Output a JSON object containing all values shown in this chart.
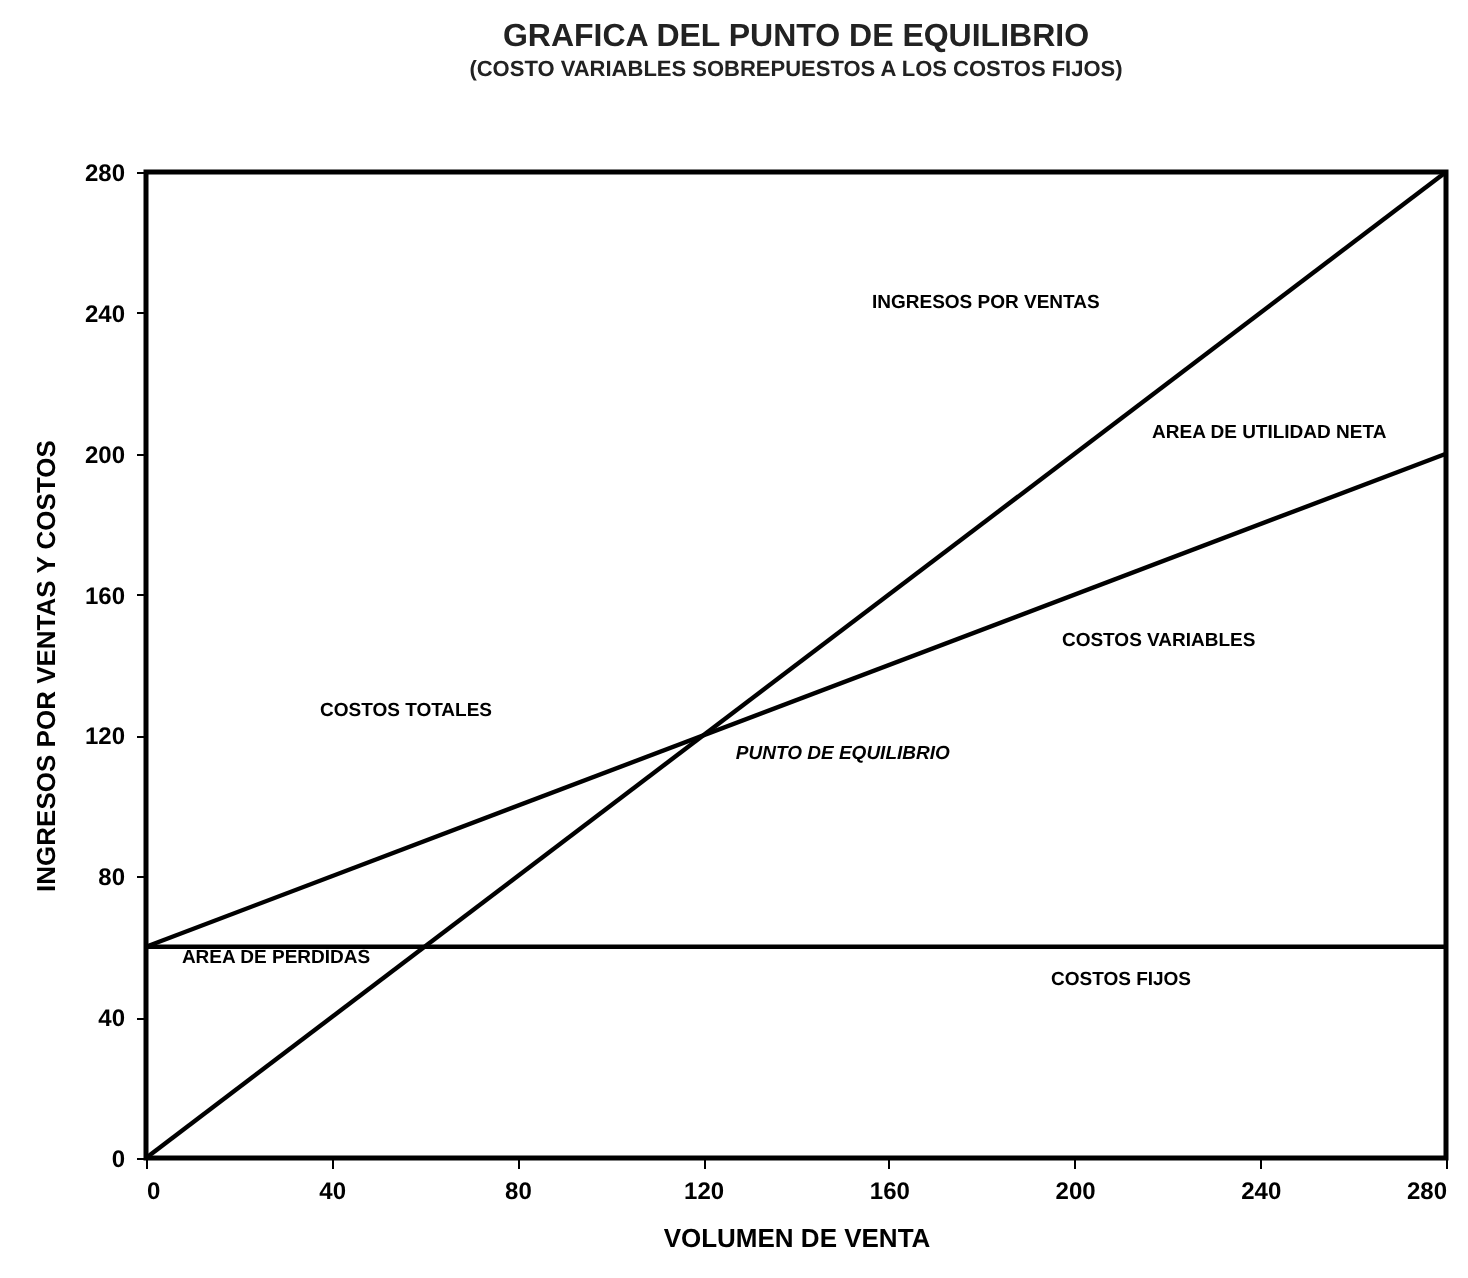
{
  "chart_data": {
    "type": "line",
    "title": "GRAFICA DEL PUNTO DE EQUILIBRIO",
    "subtitle": "(COSTO VARIABLES SOBREPUESTOS A LOS COSTOS FIJOS)",
    "xlabel": "VOLUMEN DE VENTA",
    "ylabel": "INGRESOS POR VENTAS Y COSTOS",
    "x": [
      0,
      280
    ],
    "series": [
      {
        "color": "#000000",
        "values": [
          0,
          280
        ]
      },
      {
        "color": "#000000",
        "values": [
          60,
          200
        ]
      },
      {
        "color": "#000000",
        "values": [
          60,
          60
        ]
      }
    ],
    "xlim": [
      0,
      280
    ],
    "xticks": [
      0,
      40,
      80,
      120,
      160,
      200,
      240,
      280
    ],
    "ylim": [
      0,
      280
    ],
    "yticks": [
      0,
      40,
      80,
      120,
      160,
      200,
      240,
      280
    ],
    "grid": false,
    "legend": false,
    "marker": "none",
    "line_style": "solid",
    "annotations": [
      "INGRESOS POR VENTAS",
      "AREA DE UTILIDAD NETA",
      "COSTOS VARIABLES",
      "COSTOS TOTALES",
      "PUNTO DE EQUILIBRIO",
      "AREA DE PERDIDAS",
      "COSTOS FIJOS"
    ]
  }
}
